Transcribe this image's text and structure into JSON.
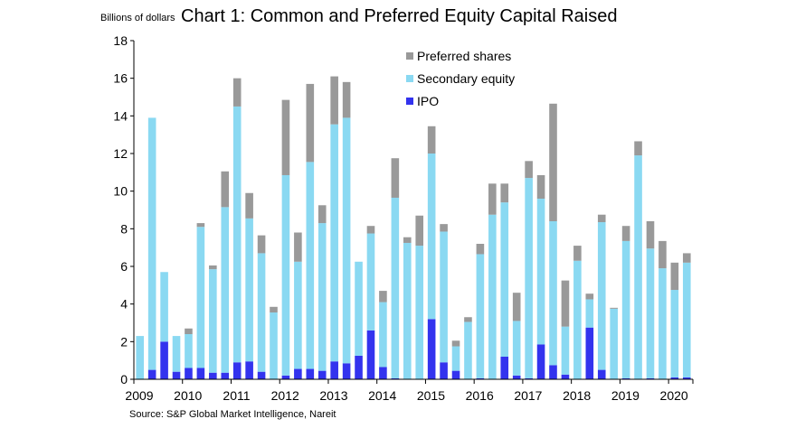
{
  "chart_data": {
    "type": "bar",
    "stacked": true,
    "title": "Chart 1: Common and Preferred Equity Capital Raised",
    "ylabel": "Billions of dollars",
    "source": "Source: S&P Global Market Intelligence, Nareit",
    "ylim": [
      0,
      18
    ],
    "yticks": [
      "0",
      "2",
      "4",
      "6",
      "8",
      "10",
      "12",
      "14",
      "16",
      "18"
    ],
    "x_tick_labels": [
      "2009",
      "2010",
      "2011",
      "2012",
      "2013",
      "2014",
      "2015",
      "2016",
      "2017",
      "2018",
      "2019",
      "2020"
    ],
    "legend_position": "top-right",
    "categories": [
      "2009Q1",
      "2009Q2",
      "2009Q3",
      "2009Q4",
      "2010Q1",
      "2010Q2",
      "2010Q3",
      "2010Q4",
      "2011Q1",
      "2011Q2",
      "2011Q3",
      "2011Q4",
      "2012Q1",
      "2012Q2",
      "2012Q3",
      "2012Q4",
      "2013Q1",
      "2013Q2",
      "2013Q3",
      "2013Q4",
      "2014Q1",
      "2014Q2",
      "2014Q3",
      "2014Q4",
      "2015Q1",
      "2015Q2",
      "2015Q3",
      "2015Q4",
      "2016Q1",
      "2016Q2",
      "2016Q3",
      "2016Q4",
      "2017Q1",
      "2017Q2",
      "2017Q3",
      "2017Q4",
      "2018Q1",
      "2018Q2",
      "2018Q3",
      "2018Q4",
      "2019Q1",
      "2019Q2",
      "2019Q3",
      "2019Q4",
      "2020Q1",
      "2020Q2"
    ],
    "series": [
      {
        "name": "IPO",
        "color": "#3333ee",
        "values": [
          0,
          0.5,
          2.0,
          0.4,
          0.6,
          0.6,
          0.35,
          0.35,
          0.9,
          0.95,
          0.4,
          0,
          0.2,
          0.55,
          0.55,
          0.45,
          0.95,
          0.85,
          1.25,
          2.6,
          0.65,
          0.05,
          0,
          0,
          3.2,
          0.9,
          0.45,
          0,
          0.05,
          0,
          1.2,
          0.2,
          0.05,
          1.85,
          0.75,
          0.25,
          0,
          2.75,
          0.5,
          0,
          0.05,
          0,
          0.05,
          0,
          0.1,
          0.1
        ]
      },
      {
        "name": "Secondary equity",
        "color": "#8ad9f2",
        "values": [
          2.3,
          13.4,
          3.7,
          1.9,
          1.8,
          7.5,
          5.5,
          8.8,
          13.6,
          7.6,
          6.3,
          3.55,
          10.65,
          5.7,
          11.0,
          7.85,
          12.6,
          13.05,
          5.0,
          5.15,
          3.45,
          9.6,
          7.25,
          7.1,
          8.8,
          6.95,
          1.3,
          3.05,
          6.6,
          8.75,
          8.2,
          2.9,
          10.65,
          7.75,
          7.65,
          2.55,
          6.3,
          1.5,
          7.85,
          3.75,
          7.3,
          11.9,
          6.9,
          5.9,
          4.65,
          6.1
        ]
      },
      {
        "name": "Preferred shares",
        "color": "#999999",
        "values": [
          0,
          0,
          0,
          0,
          0.3,
          0.2,
          0.2,
          1.9,
          1.5,
          1.35,
          0.95,
          0.3,
          4.0,
          1.55,
          4.15,
          0.95,
          2.55,
          1.9,
          0,
          0.4,
          0.6,
          2.1,
          0.3,
          1.6,
          1.45,
          0.4,
          0.3,
          0.25,
          0.55,
          1.65,
          1.0,
          1.5,
          0.9,
          1.25,
          6.25,
          2.45,
          0.8,
          0.3,
          0.4,
          0.05,
          0.8,
          0.75,
          1.45,
          1.45,
          1.45,
          0.5
        ]
      }
    ]
  }
}
